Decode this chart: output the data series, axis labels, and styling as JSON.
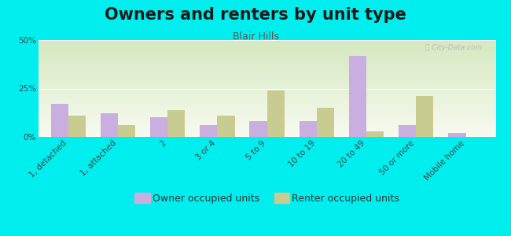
{
  "title": "Owners and renters by unit type",
  "subtitle": "Blair Hills",
  "categories": [
    "1, detached",
    "1, attached",
    "2",
    "3 or 4",
    "5 to 9",
    "10 to 19",
    "20 to 49",
    "50 or more",
    "Mobile home"
  ],
  "owner_values": [
    17,
    12,
    10,
    6,
    8,
    8,
    42,
    6,
    2
  ],
  "renter_values": [
    11,
    6,
    14,
    11,
    24,
    15,
    3,
    21,
    0
  ],
  "owner_color": "#c9aee0",
  "renter_color": "#c8cc90",
  "background_color": "#00eeee",
  "grad_top": "#d4e8c0",
  "grad_bottom": "#f8faf0",
  "ylim": [
    0,
    50
  ],
  "yticks": [
    0,
    25,
    50
  ],
  "ytick_labels": [
    "0%",
    "25%",
    "50%"
  ],
  "bar_width": 0.35,
  "legend_owner": "Owner occupied units",
  "legend_renter": "Renter occupied units",
  "title_fontsize": 15,
  "subtitle_fontsize": 9,
  "tick_fontsize": 7.5,
  "legend_fontsize": 9
}
